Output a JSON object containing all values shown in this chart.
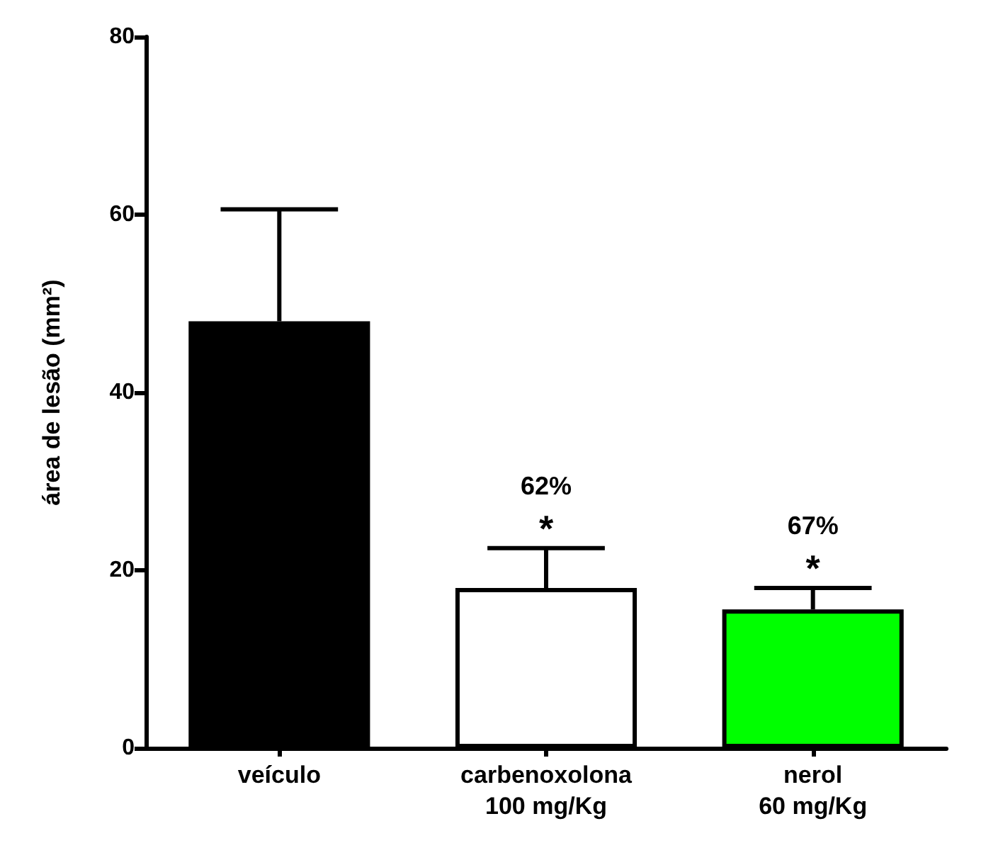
{
  "chart_data": {
    "type": "bar",
    "ylabel": "área de lesão (mm²)",
    "categories": [
      "veículo",
      "carbenoxolona\n100 mg/Kg",
      "nerol\n60 mg/Kg"
    ],
    "values": [
      48,
      18,
      15.6
    ],
    "colors": [
      "#000000",
      "#ffffff",
      "#00ff00"
    ],
    "errors": [
      [
        48,
        60.6
      ],
      [
        18,
        22.5
      ],
      [
        15.6,
        18
      ]
    ],
    "ylim": [
      0,
      80
    ],
    "yticks": [
      0,
      20,
      40,
      60,
      80
    ],
    "grid": false,
    "annotations": [
      "*",
      "62%",
      "*",
      "67%"
    ]
  }
}
